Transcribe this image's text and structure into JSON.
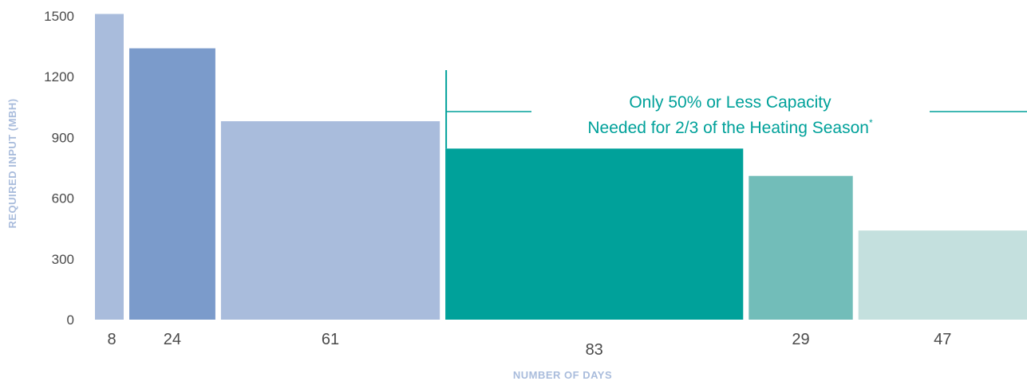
{
  "chart_data": {
    "type": "bar",
    "title": "",
    "xlabel": "NUMBER OF DAYS",
    "ylabel": "REQUIRED INPUT (MBH)",
    "ylim": [
      0,
      1500
    ],
    "yticks": [
      "0",
      "300",
      "600",
      "900",
      "1200",
      "1500"
    ],
    "grid": false,
    "categories": [
      "8",
      "24",
      "61",
      "83",
      "29",
      "47"
    ],
    "days": [
      8,
      24,
      61,
      83,
      29,
      47
    ],
    "values": [
      1510,
      1340,
      980,
      845,
      710,
      440
    ],
    "bar_colors": [
      "#a9bcdc",
      "#7b9bcb",
      "#a9bcdc",
      "#00a19a",
      "#72bdb9",
      "#c4e0de"
    ],
    "annotation": {
      "line1": "Only 50% or Less Capacity",
      "line2": "Needed for 2/3 of the Heating Season",
      "footnote_mark": "*",
      "color": "#00a19a"
    }
  }
}
